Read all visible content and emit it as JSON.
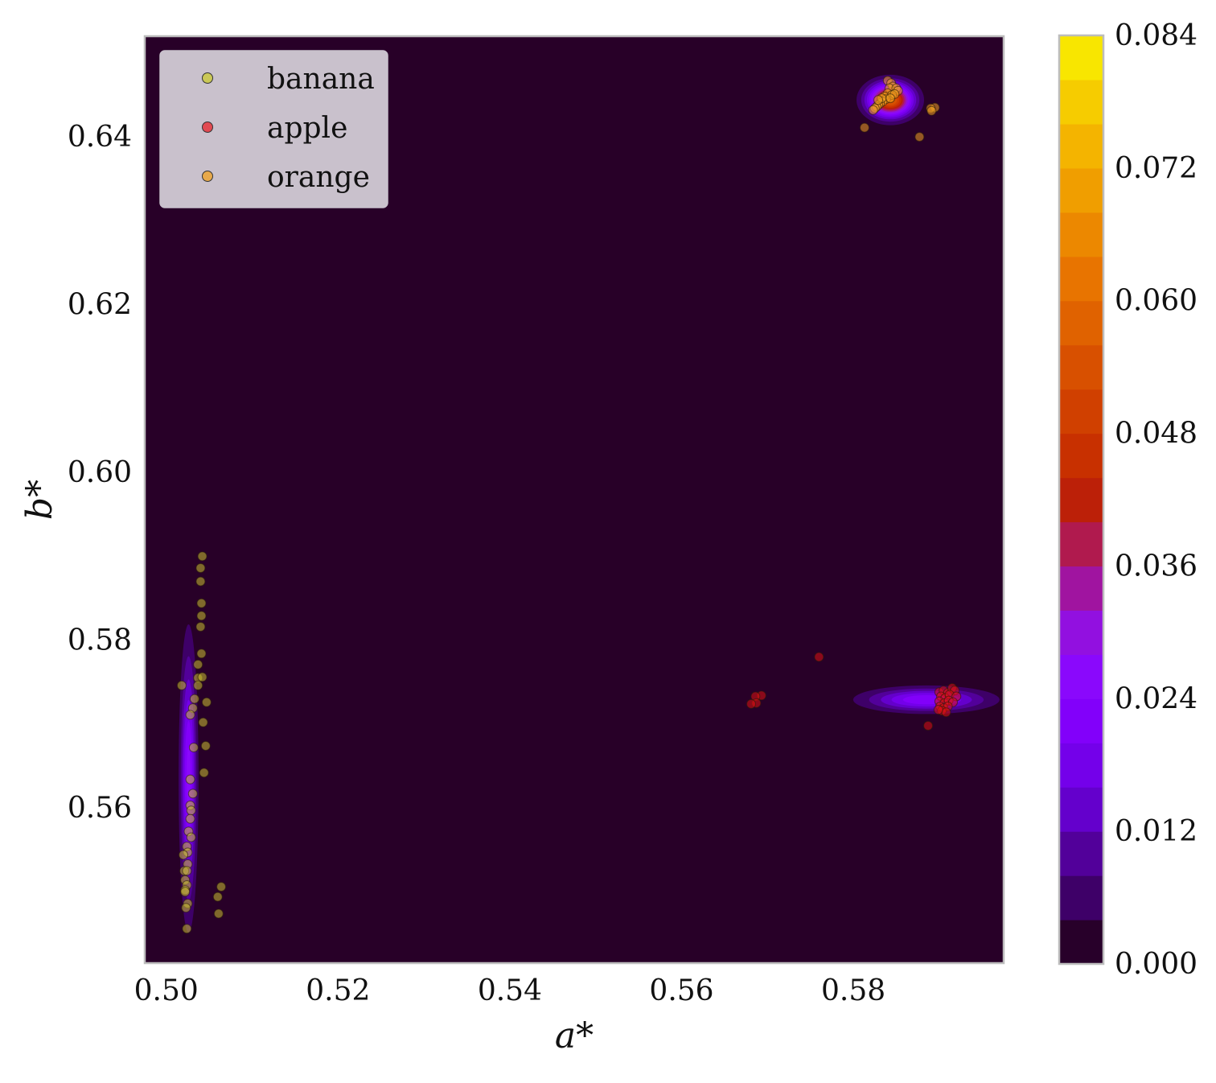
{
  "chart_data": {
    "type": "scatter",
    "x_axis": {
      "label": "a*",
      "range": [
        0.4975,
        0.5975
      ],
      "ticks": [
        "0.50",
        "0.52",
        "0.54",
        "0.56",
        "0.58"
      ],
      "tick_values": [
        0.5,
        0.52,
        0.54,
        0.56,
        0.58
      ]
    },
    "y_axis": {
      "label": "b*",
      "range": [
        0.5415,
        0.652
      ],
      "ticks": [
        "0.56",
        "0.58",
        "0.60",
        "0.62",
        "0.64"
      ],
      "tick_values": [
        0.56,
        0.58,
        0.6,
        0.62,
        0.64
      ]
    },
    "grid": false,
    "background_color": "#280028",
    "legend": {
      "position": "top-left",
      "entries": [
        {
          "name": "banana",
          "color": "#c9c930"
        },
        {
          "name": "apple",
          "color": "#e8222a"
        },
        {
          "name": "orange",
          "color": "#f0a020"
        }
      ]
    },
    "density_contours": [
      {
        "name": "banana",
        "center": [
          0.5026,
          0.5635
        ],
        "sigma": [
          0.0006,
          0.0095
        ],
        "peak": 0.026
      },
      {
        "name": "apple",
        "center": [
          0.5885,
          0.5729
        ],
        "sigma": [
          0.0045,
          0.0009
        ],
        "peak": 0.024
      },
      {
        "name": "orange",
        "center": [
          0.5843,
          0.6444
        ],
        "sigma": [
          0.0017,
          0.0013
        ],
        "peak": 0.058
      }
    ],
    "colorbar": {
      "range": [
        0.0,
        0.084
      ],
      "ticks": [
        "0.000",
        "0.012",
        "0.024",
        "0.036",
        "0.048",
        "0.060",
        "0.072",
        "0.084"
      ],
      "levels": [
        "#28002a",
        "#3e0068",
        "#52009a",
        "#6400cc",
        "#7400ea",
        "#8200fa",
        "#8a08fc",
        "#9210e0",
        "#a014a0",
        "#b01a4e",
        "#bc2008",
        "#c83000",
        "#d04000",
        "#d85000",
        "#e06200",
        "#e87400",
        "#ec8800",
        "#f09e00",
        "#f4b400",
        "#f6cc00",
        "#f8e600"
      ]
    },
    "series": [
      {
        "name": "banana",
        "color": "#c8c030",
        "points": [
          [
            0.5042,
            0.59
          ],
          [
            0.504,
            0.5886
          ],
          [
            0.504,
            0.587
          ],
          [
            0.5041,
            0.5844
          ],
          [
            0.5041,
            0.5829
          ],
          [
            0.504,
            0.5816
          ],
          [
            0.5041,
            0.5784
          ],
          [
            0.5037,
            0.5771
          ],
          [
            0.5037,
            0.5755
          ],
          [
            0.5042,
            0.5756
          ],
          [
            0.5037,
            0.5746
          ],
          [
            0.5018,
            0.5746
          ],
          [
            0.5033,
            0.573
          ],
          [
            0.5047,
            0.5726
          ],
          [
            0.5031,
            0.5719
          ],
          [
            0.5028,
            0.5711
          ],
          [
            0.5043,
            0.5702
          ],
          [
            0.5046,
            0.5674
          ],
          [
            0.5032,
            0.5672
          ],
          [
            0.5044,
            0.5642
          ],
          [
            0.5028,
            0.5634
          ],
          [
            0.5031,
            0.5617
          ],
          [
            0.5028,
            0.5603
          ],
          [
            0.5029,
            0.5597
          ],
          [
            0.5028,
            0.5587
          ],
          [
            0.5026,
            0.5572
          ],
          [
            0.5029,
            0.5565
          ],
          [
            0.5024,
            0.5554
          ],
          [
            0.5025,
            0.5547
          ],
          [
            0.502,
            0.5544
          ],
          [
            0.5025,
            0.5533
          ],
          [
            0.5021,
            0.5525
          ],
          [
            0.5024,
            0.5525
          ],
          [
            0.5022,
            0.5514
          ],
          [
            0.5024,
            0.5508
          ],
          [
            0.5022,
            0.5502
          ],
          [
            0.5022,
            0.55
          ],
          [
            0.5025,
            0.5486
          ],
          [
            0.5023,
            0.5481
          ],
          [
            0.5024,
            0.5456
          ],
          [
            0.5064,
            0.5506
          ],
          [
            0.506,
            0.5494
          ],
          [
            0.5061,
            0.5474
          ]
        ]
      },
      {
        "name": "apple",
        "color": "#dd1111",
        "points": [
          [
            0.576,
            0.578
          ],
          [
            0.5693,
            0.5734
          ],
          [
            0.5686,
            0.5733
          ],
          [
            0.5687,
            0.5725
          ],
          [
            0.5681,
            0.5724
          ],
          [
            0.5887,
            0.5698
          ],
          [
            0.59,
            0.5738
          ],
          [
            0.5905,
            0.574
          ],
          [
            0.591,
            0.5737
          ],
          [
            0.5915,
            0.5743
          ],
          [
            0.5918,
            0.574
          ],
          [
            0.5902,
            0.5733
          ],
          [
            0.5907,
            0.5731
          ],
          [
            0.5912,
            0.5735
          ],
          [
            0.592,
            0.5733
          ],
          [
            0.59,
            0.5727
          ],
          [
            0.5906,
            0.5725
          ],
          [
            0.5911,
            0.5728
          ],
          [
            0.5916,
            0.5726
          ],
          [
            0.5901,
            0.5721
          ],
          [
            0.5905,
            0.5719
          ],
          [
            0.591,
            0.5721
          ],
          [
            0.5903,
            0.5716
          ],
          [
            0.5908,
            0.5714
          ],
          [
            0.5899,
            0.5717
          ]
        ]
      },
      {
        "name": "orange",
        "color": "#f0a020",
        "points": [
          [
            0.584,
            0.6467
          ],
          [
            0.5844,
            0.6464
          ],
          [
            0.5846,
            0.646
          ],
          [
            0.5842,
            0.6458
          ],
          [
            0.585,
            0.6458
          ],
          [
            0.5852,
            0.6455
          ],
          [
            0.584,
            0.6452
          ],
          [
            0.5845,
            0.645
          ],
          [
            0.5836,
            0.6448
          ],
          [
            0.5838,
            0.6445
          ],
          [
            0.5834,
            0.6442
          ],
          [
            0.5831,
            0.644
          ],
          [
            0.5829,
            0.6438
          ],
          [
            0.5827,
            0.6436
          ],
          [
            0.5825,
            0.6434
          ],
          [
            0.5823,
            0.6432
          ],
          [
            0.5848,
            0.6451
          ],
          [
            0.5843,
            0.6446
          ],
          [
            0.5833,
            0.6446
          ],
          [
            0.5829,
            0.6444
          ],
          [
            0.5895,
            0.6435
          ],
          [
            0.589,
            0.6434
          ],
          [
            0.5891,
            0.6431
          ],
          [
            0.5813,
            0.6411
          ],
          [
            0.5877,
            0.64
          ]
        ]
      }
    ]
  }
}
